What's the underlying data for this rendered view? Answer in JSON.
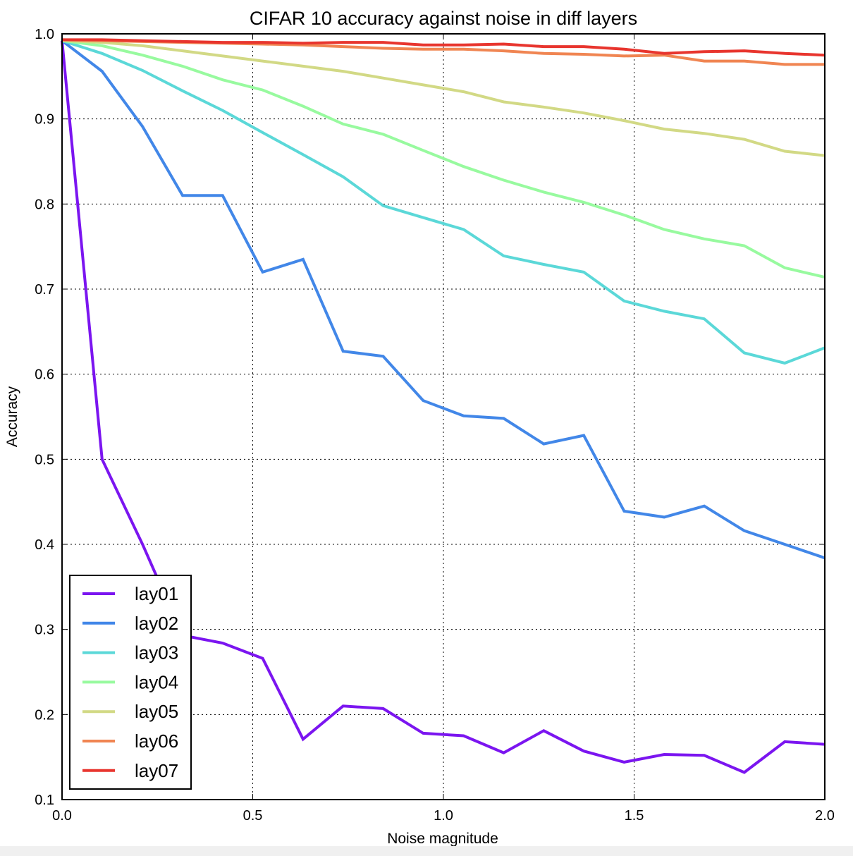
{
  "chart_data": {
    "type": "line",
    "title": "CIFAR 10 accuracy against noise in diff layers",
    "xlabel": "Noise magnitude",
    "ylabel": "Accuracy",
    "xlim": [
      0.0,
      2.0
    ],
    "ylim": [
      0.1,
      1.0
    ],
    "xticks": [
      "0.0",
      "0.5",
      "1.0",
      "1.5",
      "2.0"
    ],
    "yticks": [
      "0.1",
      "0.2",
      "0.3",
      "0.4",
      "0.5",
      "0.6",
      "0.7",
      "0.8",
      "0.9",
      "1.0"
    ],
    "grid": true,
    "legend_position": "lower-left",
    "x": [
      0.0,
      0.105,
      0.211,
      0.316,
      0.421,
      0.526,
      0.632,
      0.737,
      0.842,
      0.947,
      1.053,
      1.158,
      1.263,
      1.368,
      1.474,
      1.579,
      1.684,
      1.789,
      1.895,
      2.0
    ],
    "series": [
      {
        "name": "lay01",
        "color": "#7b15f0",
        "values": [
          0.992,
          0.5,
          0.4,
          0.293,
          0.284,
          0.266,
          0.171,
          0.21,
          0.207,
          0.178,
          0.175,
          0.155,
          0.181,
          0.157,
          0.144,
          0.153,
          0.152,
          0.132,
          0.168,
          0.165
        ]
      },
      {
        "name": "lay02",
        "color": "#4287e8",
        "values": [
          0.992,
          0.956,
          0.891,
          0.81,
          0.81,
          0.72,
          0.735,
          0.627,
          0.621,
          0.569,
          0.551,
          0.548,
          0.518,
          0.528,
          0.439,
          0.432,
          0.445,
          0.416,
          0.4,
          0.384
        ]
      },
      {
        "name": "lay03",
        "color": "#5bd8d8",
        "values": [
          0.992,
          0.977,
          0.957,
          0.933,
          0.91,
          0.884,
          0.858,
          0.832,
          0.798,
          0.784,
          0.77,
          0.739,
          0.729,
          0.72,
          0.686,
          0.674,
          0.665,
          0.625,
          0.613,
          0.631
        ]
      },
      {
        "name": "lay04",
        "color": "#98fa9f",
        "values": [
          0.992,
          0.986,
          0.975,
          0.962,
          0.946,
          0.934,
          0.915,
          0.894,
          0.882,
          0.863,
          0.844,
          0.828,
          0.814,
          0.802,
          0.787,
          0.77,
          0.759,
          0.751,
          0.725,
          0.714
        ]
      },
      {
        "name": "lay05",
        "color": "#d2d985",
        "values": [
          0.992,
          0.99,
          0.986,
          0.98,
          0.974,
          0.968,
          0.962,
          0.956,
          0.948,
          0.94,
          0.932,
          0.92,
          0.914,
          0.907,
          0.898,
          0.888,
          0.883,
          0.876,
          0.862,
          0.857
        ]
      },
      {
        "name": "lay06",
        "color": "#f08552",
        "values": [
          0.993,
          0.992,
          0.991,
          0.99,
          0.989,
          0.988,
          0.987,
          0.985,
          0.983,
          0.982,
          0.982,
          0.98,
          0.977,
          0.976,
          0.974,
          0.975,
          0.968,
          0.968,
          0.964,
          0.964
        ]
      },
      {
        "name": "lay07",
        "color": "#e8352e",
        "values": [
          0.993,
          0.993,
          0.992,
          0.991,
          0.99,
          0.99,
          0.989,
          0.99,
          0.99,
          0.987,
          0.987,
          0.988,
          0.985,
          0.985,
          0.982,
          0.977,
          0.979,
          0.98,
          0.977,
          0.975
        ]
      }
    ]
  }
}
